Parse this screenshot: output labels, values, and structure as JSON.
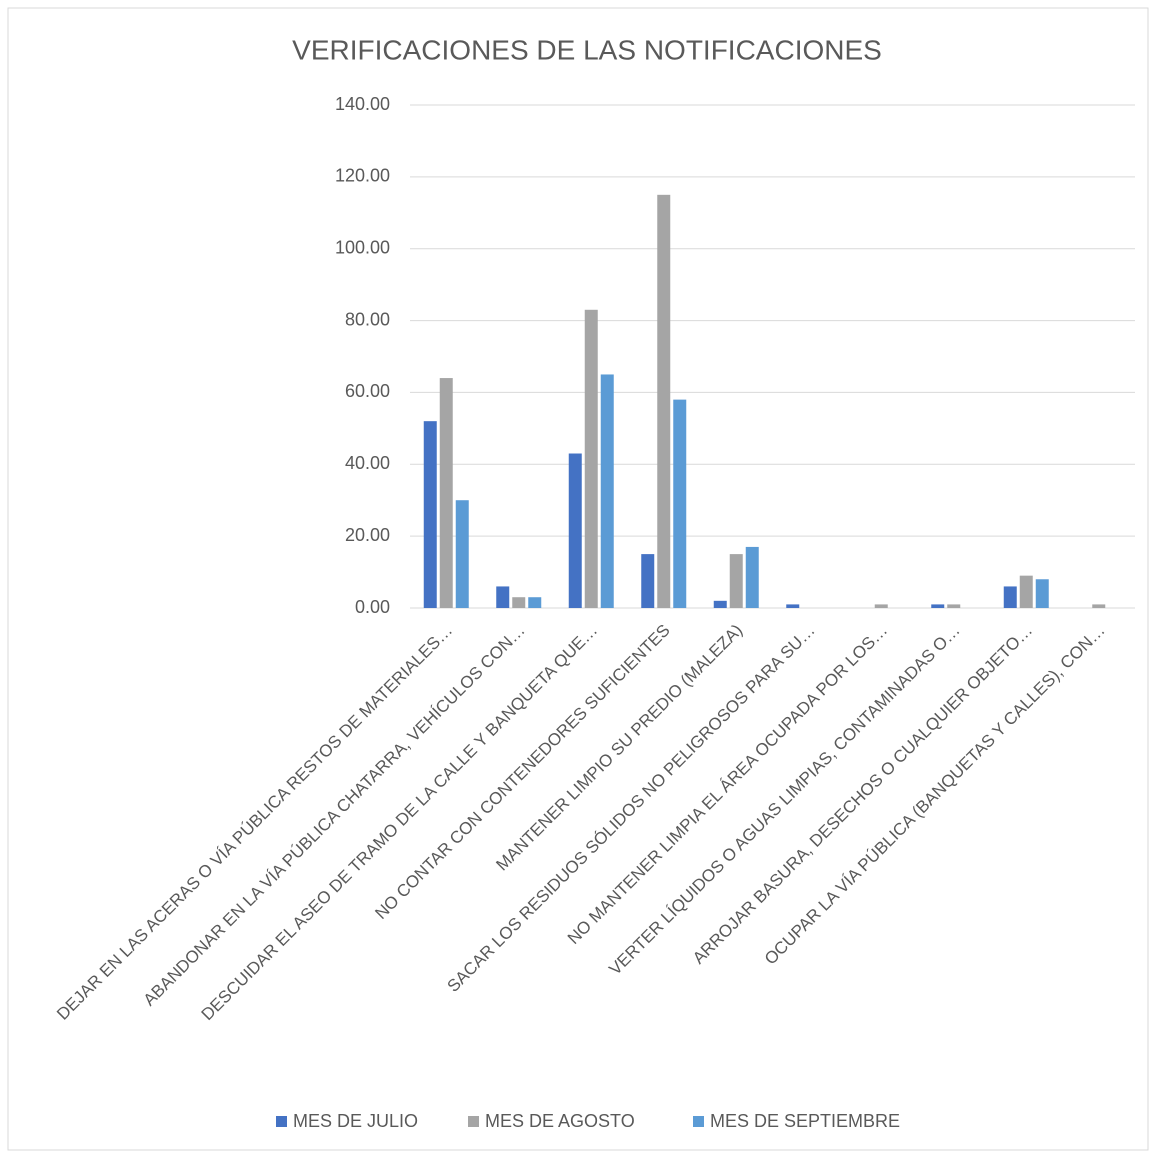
{
  "chart_data": {
    "type": "bar",
    "title": "VERIFICACIONES  DE LAS NOTIFICACIONES",
    "categories": [
      "DEJAR EN LAS ACERAS O VÍA PÚBLICA RESTOS DE MATERIALES…",
      "ABANDONAR EN LA VÍA PÚBLICA CHATARRA, VEHÍCULOS CON…",
      "DESCUIDAR EL ASEO DE TRAMO DE LA CALLE Y BANQUETA QUE…",
      "NO CONTAR CON CONTENEDORES SUFICIENTES",
      "MANTENER LIMPIO SU PREDIO (MALEZA)",
      "SACAR LOS RESIDUOS SÓLIDOS NO PELIGROSOS PARA SU…",
      "NO MANTENER LIMPIA EL ÁREA OCUPADA POR LOS…",
      "VERTER LÍQUIDOS O AGUAS LIMPIAS, CONTAMINADAS O…",
      "ARROJAR BASURA, DESECHOS O CUALQUIER OBJETO…",
      "OCUPAR LA VÍA PÚBLICA (BANQUETAS Y CALLES), CON…"
    ],
    "series": [
      {
        "name": "MES DE JULIO",
        "color": "#4472c4",
        "values": [
          52,
          6,
          43,
          15,
          2,
          1,
          0,
          1,
          6,
          0
        ]
      },
      {
        "name": "MES DE AGOSTO",
        "color": "#a5a5a5",
        "values": [
          64,
          3,
          83,
          115,
          15,
          0,
          1,
          1,
          9,
          1
        ]
      },
      {
        "name": "MES DE SEPTIEMBRE",
        "color": "#5b9bd5",
        "values": [
          30,
          3,
          65,
          58,
          17,
          0,
          0,
          0,
          8,
          0
        ]
      }
    ],
    "ylim": [
      0,
      140
    ],
    "yticks": [
      {
        "value": 0,
        "label": "0.00"
      },
      {
        "value": 20,
        "label": "20.00"
      },
      {
        "value": 40,
        "label": "40.00"
      },
      {
        "value": 60,
        "label": "60.00"
      },
      {
        "value": 80,
        "label": "80.00"
      },
      {
        "value": 100,
        "label": "100.00"
      },
      {
        "value": 120,
        "label": "120.00"
      },
      {
        "value": 140,
        "label": "140.00"
      }
    ],
    "grid": true,
    "legend": "bottom"
  }
}
